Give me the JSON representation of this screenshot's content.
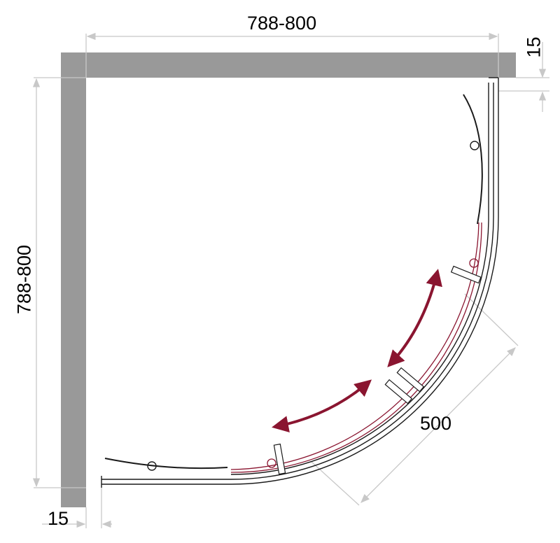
{
  "dimensions": {
    "width_label": "788-800",
    "depth_label": "788-800",
    "wall_offset_top": "15",
    "wall_offset_left": "15",
    "door_opening": "500"
  },
  "colors": {
    "wall": "#999999",
    "outline": "#1a1a1a",
    "sliding_door": "#8a1530",
    "dimension_line": "#c8c8c8"
  }
}
